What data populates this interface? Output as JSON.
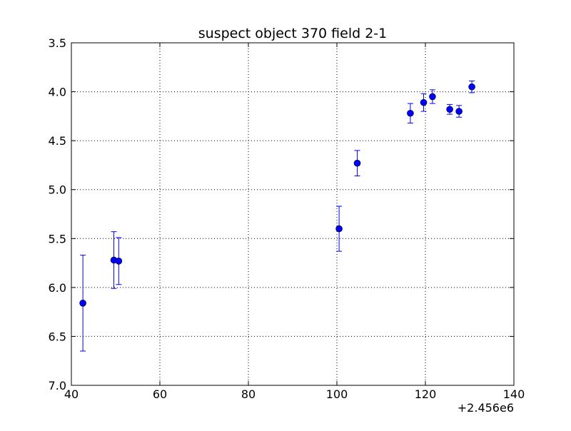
{
  "chart_data": {
    "type": "scatter",
    "title": "suspect object 370 field 2-1",
    "xlabel": "",
    "ylabel": "",
    "x_offset_label": "+2.456e6",
    "xlim": [
      40,
      140
    ],
    "ylim": [
      3.5,
      7.0
    ],
    "y_inverted": true,
    "grid": true,
    "grid_style": "dotted",
    "x_ticks": [
      40,
      60,
      80,
      100,
      120,
      140
    ],
    "x_tick_labels": [
      "40",
      "60",
      "80",
      "100",
      "120",
      "140"
    ],
    "y_ticks": [
      3.5,
      4.0,
      4.5,
      5.0,
      5.5,
      6.0,
      6.5,
      7.0
    ],
    "y_tick_labels": [
      "3.5",
      "4.0",
      "4.5",
      "5.0",
      "5.5",
      "6.0",
      "6.5",
      "7.0"
    ],
    "marker_color": "#0000ff",
    "series": [
      {
        "points": [
          {
            "x": 42.6,
            "y": 6.16,
            "err": 0.49
          },
          {
            "x": 49.6,
            "y": 5.72,
            "err": 0.29
          },
          {
            "x": 50.7,
            "y": 5.73,
            "err": 0.24
          },
          {
            "x": 100.5,
            "y": 5.4,
            "err": 0.23
          },
          {
            "x": 104.6,
            "y": 4.73,
            "err": 0.13
          },
          {
            "x": 116.6,
            "y": 4.22,
            "err": 0.1
          },
          {
            "x": 119.6,
            "y": 4.11,
            "err": 0.09
          },
          {
            "x": 121.6,
            "y": 4.05,
            "err": 0.07
          },
          {
            "x": 125.5,
            "y": 4.18,
            "err": 0.05
          },
          {
            "x": 127.6,
            "y": 4.2,
            "err": 0.06
          },
          {
            "x": 130.5,
            "y": 3.95,
            "err": 0.06
          }
        ]
      }
    ]
  }
}
